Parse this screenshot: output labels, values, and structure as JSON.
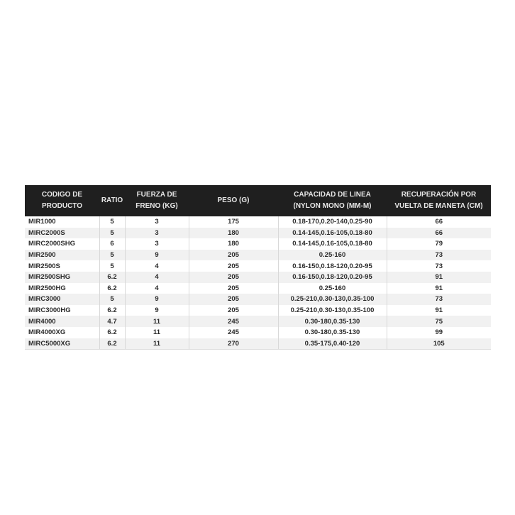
{
  "table": {
    "headers": [
      [
        "CODIGO DE",
        "PRODUCTO"
      ],
      [
        "RATIO"
      ],
      [
        "FUERZA DE",
        "FRENO (KG)"
      ],
      [
        "PESO (G)"
      ],
      [
        "CAPACIDAD DE LINEA",
        "(NYLON MONO (MM-M)"
      ],
      [
        "RECUPERACIÓN POR",
        "VUELTA DE MANETA (CM)"
      ]
    ],
    "rows": [
      [
        "MIR1000",
        "5",
        "3",
        "175",
        "0.18-170,0.20-140,0.25-90",
        "66"
      ],
      [
        "MIRC2000S",
        "5",
        "3",
        "180",
        "0.14-145,0.16-105,0.18-80",
        "66"
      ],
      [
        "MIRC2000SHG",
        "6",
        "3",
        "180",
        "0.14-145,0.16-105,0.18-80",
        "79"
      ],
      [
        "MIR2500",
        "5",
        "9",
        "205",
        "0.25-160",
        "73"
      ],
      [
        "MIR2500S",
        "5",
        "4",
        "205",
        "0.16-150,0.18-120,0.20-95",
        "73"
      ],
      [
        "MIR2500SHG",
        "6.2",
        "4",
        "205",
        "0.16-150,0.18-120,0.20-95",
        "91"
      ],
      [
        "MIR2500HG",
        "6.2",
        "4",
        "205",
        "0.25-160",
        "91"
      ],
      [
        "MIRC3000",
        "5",
        "9",
        "205",
        "0.25-210,0.30-130,0.35-100",
        "73"
      ],
      [
        "MIRC3000HG",
        "6.2",
        "9",
        "205",
        "0.25-210,0.30-130,0.35-100",
        "91"
      ],
      [
        "MIR4000",
        "4.7",
        "11",
        "245",
        "0.30-180,0.35-130",
        "75"
      ],
      [
        "MIR4000XG",
        "6.2",
        "11",
        "245",
        "0.30-180,0.35-130",
        "99"
      ],
      [
        "MIRC5000XG",
        "6.2",
        "11",
        "270",
        "0.35-175,0.40-120",
        "105"
      ]
    ]
  }
}
